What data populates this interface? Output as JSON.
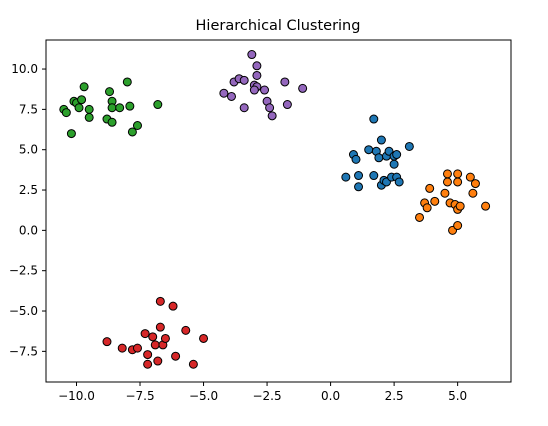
{
  "chart_data": {
    "type": "scatter",
    "title": "Hierarchical Clustering",
    "xlabel": "",
    "ylabel": "",
    "xlim": [
      -11.2,
      7.1
    ],
    "ylim": [
      -9.4,
      11.8
    ],
    "xticks": [
      -10.0,
      -7.5,
      -5.0,
      -2.5,
      0.0,
      2.5,
      5.0
    ],
    "xtick_labels": [
      "−10.0",
      "−7.5",
      "−5.0",
      "−2.5",
      "0.0",
      "2.5",
      "5.0"
    ],
    "yticks": [
      10.0,
      7.5,
      5.0,
      2.5,
      0.0,
      -2.5,
      -5.0,
      -7.5
    ],
    "ytick_labels": [
      "10.0",
      "7.5",
      "5.0",
      "2.5",
      "0.0",
      "−2.5",
      "−5.0",
      "−7.5"
    ],
    "grid": false,
    "legend": "none",
    "marker_edge_color": "#000000",
    "series": [
      {
        "color": "#2ca02c",
        "points": [
          [
            -10.5,
            7.5
          ],
          [
            -10.4,
            7.3
          ],
          [
            -10.1,
            8.0
          ],
          [
            -10.0,
            7.9
          ],
          [
            -9.9,
            7.6
          ],
          [
            -9.8,
            8.1
          ],
          [
            -9.7,
            8.9
          ],
          [
            -9.5,
            7.5
          ],
          [
            -9.5,
            7.0
          ],
          [
            -10.2,
            6.0
          ],
          [
            -8.8,
            6.9
          ],
          [
            -8.7,
            8.6
          ],
          [
            -8.6,
            8.0
          ],
          [
            -8.6,
            7.6
          ],
          [
            -8.6,
            6.7
          ],
          [
            -8.3,
            7.6
          ],
          [
            -8.0,
            9.2
          ],
          [
            -7.9,
            7.7
          ],
          [
            -7.8,
            6.1
          ],
          [
            -7.6,
            6.5
          ],
          [
            -6.8,
            7.8
          ]
        ]
      },
      {
        "color": "#9467bd",
        "points": [
          [
            -4.2,
            8.5
          ],
          [
            -3.9,
            8.3
          ],
          [
            -3.8,
            9.2
          ],
          [
            -3.6,
            9.4
          ],
          [
            -3.4,
            9.3
          ],
          [
            -3.4,
            7.6
          ],
          [
            -3.1,
            10.9
          ],
          [
            -3.0,
            9.0
          ],
          [
            -2.9,
            9.6
          ],
          [
            -2.9,
            8.9
          ],
          [
            -3.0,
            8.7
          ],
          [
            -2.9,
            10.2
          ],
          [
            -2.6,
            8.7
          ],
          [
            -2.5,
            8.0
          ],
          [
            -2.4,
            7.6
          ],
          [
            -2.3,
            7.1
          ],
          [
            -1.8,
            9.2
          ],
          [
            -1.7,
            7.8
          ],
          [
            -1.1,
            8.8
          ]
        ]
      },
      {
        "color": "#1f77b4",
        "points": [
          [
            0.6,
            3.3
          ],
          [
            0.9,
            4.7
          ],
          [
            1.0,
            4.4
          ],
          [
            1.1,
            3.4
          ],
          [
            1.1,
            2.7
          ],
          [
            1.5,
            5.0
          ],
          [
            1.7,
            6.9
          ],
          [
            1.7,
            3.4
          ],
          [
            1.8,
            4.9
          ],
          [
            1.9,
            4.5
          ],
          [
            2.0,
            5.6
          ],
          [
            2.0,
            2.8
          ],
          [
            2.1,
            3.1
          ],
          [
            2.2,
            3.0
          ],
          [
            2.2,
            4.6
          ],
          [
            2.3,
            4.9
          ],
          [
            2.4,
            3.3
          ],
          [
            2.5,
            4.6
          ],
          [
            2.5,
            4.1
          ],
          [
            2.6,
            4.7
          ],
          [
            2.6,
            3.3
          ],
          [
            2.7,
            3.0
          ],
          [
            3.1,
            5.2
          ]
        ]
      },
      {
        "color": "#ff7f0e",
        "points": [
          [
            3.5,
            0.8
          ],
          [
            3.7,
            1.7
          ],
          [
            3.8,
            1.4
          ],
          [
            3.9,
            2.6
          ],
          [
            4.1,
            1.8
          ],
          [
            4.5,
            2.3
          ],
          [
            4.6,
            3.5
          ],
          [
            4.6,
            3.0
          ],
          [
            4.7,
            1.7
          ],
          [
            4.8,
            0.0
          ],
          [
            4.9,
            1.6
          ],
          [
            5.0,
            1.3
          ],
          [
            5.0,
            3.5
          ],
          [
            5.0,
            3.0
          ],
          [
            5.0,
            0.3
          ],
          [
            5.1,
            1.5
          ],
          [
            5.5,
            3.3
          ],
          [
            5.6,
            2.3
          ],
          [
            5.7,
            2.9
          ],
          [
            6.1,
            1.5
          ]
        ]
      },
      {
        "color": "#d62728",
        "points": [
          [
            -8.8,
            -6.9
          ],
          [
            -8.2,
            -7.3
          ],
          [
            -7.8,
            -7.4
          ],
          [
            -7.6,
            -7.3
          ],
          [
            -7.3,
            -6.4
          ],
          [
            -7.2,
            -7.7
          ],
          [
            -7.2,
            -8.3
          ],
          [
            -7.0,
            -6.6
          ],
          [
            -6.9,
            -7.1
          ],
          [
            -6.8,
            -8.1
          ],
          [
            -6.7,
            -6.0
          ],
          [
            -6.7,
            -4.4
          ],
          [
            -6.6,
            -7.1
          ],
          [
            -6.5,
            -6.7
          ],
          [
            -6.2,
            -4.7
          ],
          [
            -6.1,
            -7.8
          ],
          [
            -5.7,
            -6.2
          ],
          [
            -5.4,
            -8.3
          ],
          [
            -5.0,
            -6.7
          ]
        ]
      }
    ]
  }
}
